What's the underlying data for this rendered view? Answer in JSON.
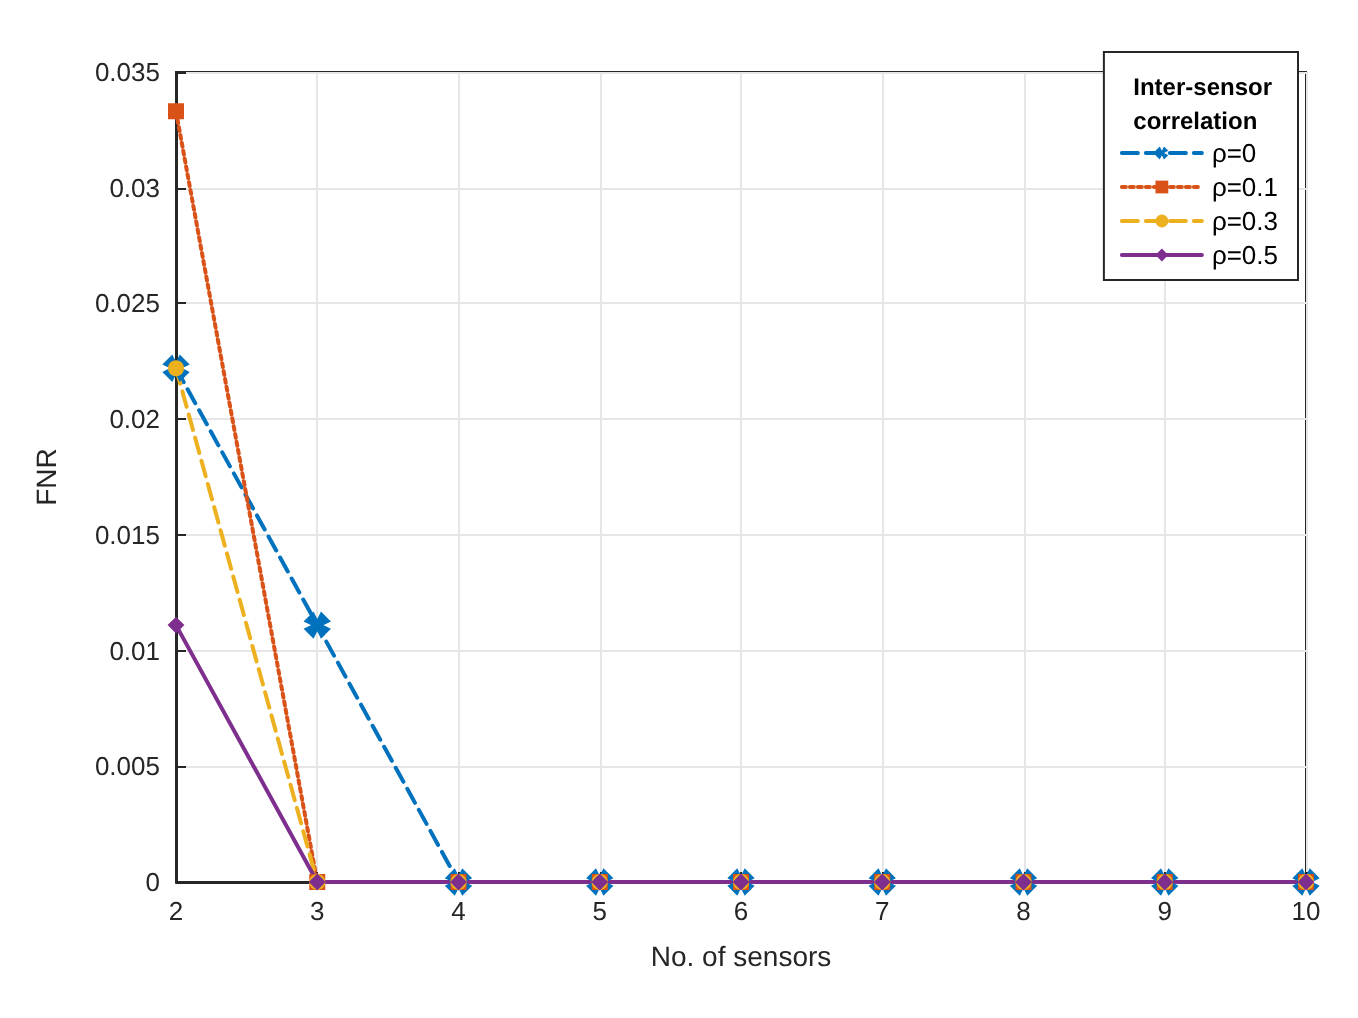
{
  "chart_data": {
    "type": "line",
    "xlabel": "No. of sensors",
    "ylabel": "FNR",
    "legend_title": "Inter-sensor\ncorrelation",
    "x": [
      2,
      3,
      4,
      5,
      6,
      7,
      8,
      9,
      10
    ],
    "series": [
      {
        "name": "ρ=0",
        "color": "#0072bd",
        "marker": "cross",
        "line_style": "dashed",
        "values": [
          0.0222,
          0.0111,
          0,
          0,
          0,
          0,
          0,
          0,
          0
        ]
      },
      {
        "name": "ρ=0.1",
        "color": "#d95319",
        "marker": "square",
        "line_style": "dotted",
        "values": [
          0.0333,
          0,
          0,
          0,
          0,
          0,
          0,
          0,
          0
        ]
      },
      {
        "name": "ρ=0.3",
        "color": "#edb120",
        "marker": "circle",
        "line_style": "dashed",
        "values": [
          0.0222,
          0,
          0,
          0,
          0,
          0,
          0,
          0,
          0
        ]
      },
      {
        "name": "ρ=0.5",
        "color": "#7e2f8e",
        "marker": "diamond",
        "line_style": "solid",
        "values": [
          0.0111,
          0,
          0,
          0,
          0,
          0,
          0,
          0,
          0
        ]
      }
    ],
    "xlim": [
      2,
      10
    ],
    "xticks": [
      2,
      3,
      4,
      5,
      6,
      7,
      8,
      9,
      10
    ],
    "ylim": [
      0,
      0.035
    ],
    "yticks": [
      0,
      0.005,
      0.01,
      0.015,
      0.02,
      0.025,
      0.03,
      0.035
    ],
    "grid": true,
    "legend": "top right"
  }
}
